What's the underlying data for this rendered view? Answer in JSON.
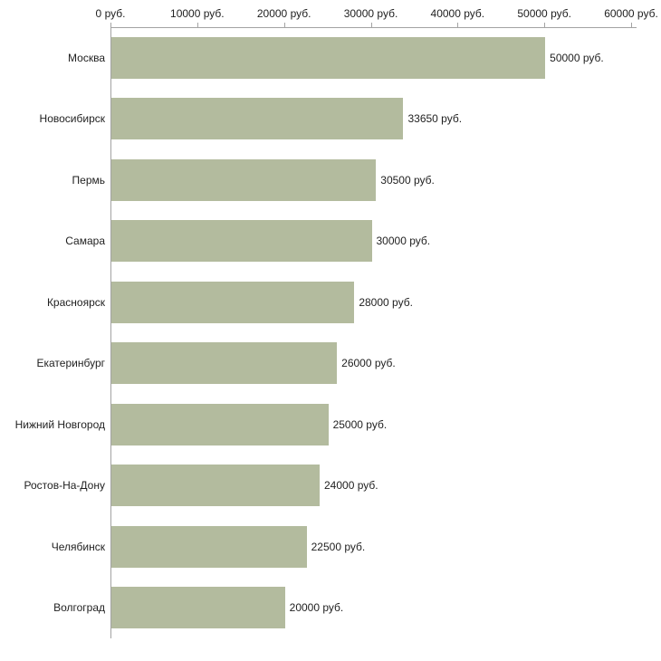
{
  "chart_data": {
    "type": "bar",
    "orientation": "horizontal",
    "title": "",
    "xlabel": "",
    "ylabel": "",
    "categories": [
      "Москва",
      "Новосибирск",
      "Пермь",
      "Самара",
      "Красноярск",
      "Екатеринбург",
      "Нижний Новгород",
      "Ростов-На-Дону",
      "Челябинск",
      "Волгоград"
    ],
    "values": [
      50000,
      33650,
      30500,
      30000,
      28000,
      26000,
      25000,
      24000,
      22500,
      20000
    ],
    "value_labels": [
      "50000 руб.",
      "33650 руб.",
      "30500 руб.",
      "30000 руб.",
      "28000 руб.",
      "26000 руб.",
      "25000 руб.",
      "24000 руб.",
      "22500 руб.",
      "20000 руб."
    ],
    "x_ticks": [
      0,
      10000,
      20000,
      30000,
      40000,
      50000,
      60000
    ],
    "x_tick_labels": [
      "0 руб.",
      "10000 руб.",
      "20000 руб.",
      "30000 руб.",
      "40000 руб.",
      "50000 руб.",
      "60000 руб."
    ],
    "xlim": [
      0,
      60000
    ],
    "grid": false,
    "legend": false,
    "bar_color": "#b3bb9e",
    "axis_color": "#a3a3a3",
    "text_color": "#1f1f1f"
  }
}
